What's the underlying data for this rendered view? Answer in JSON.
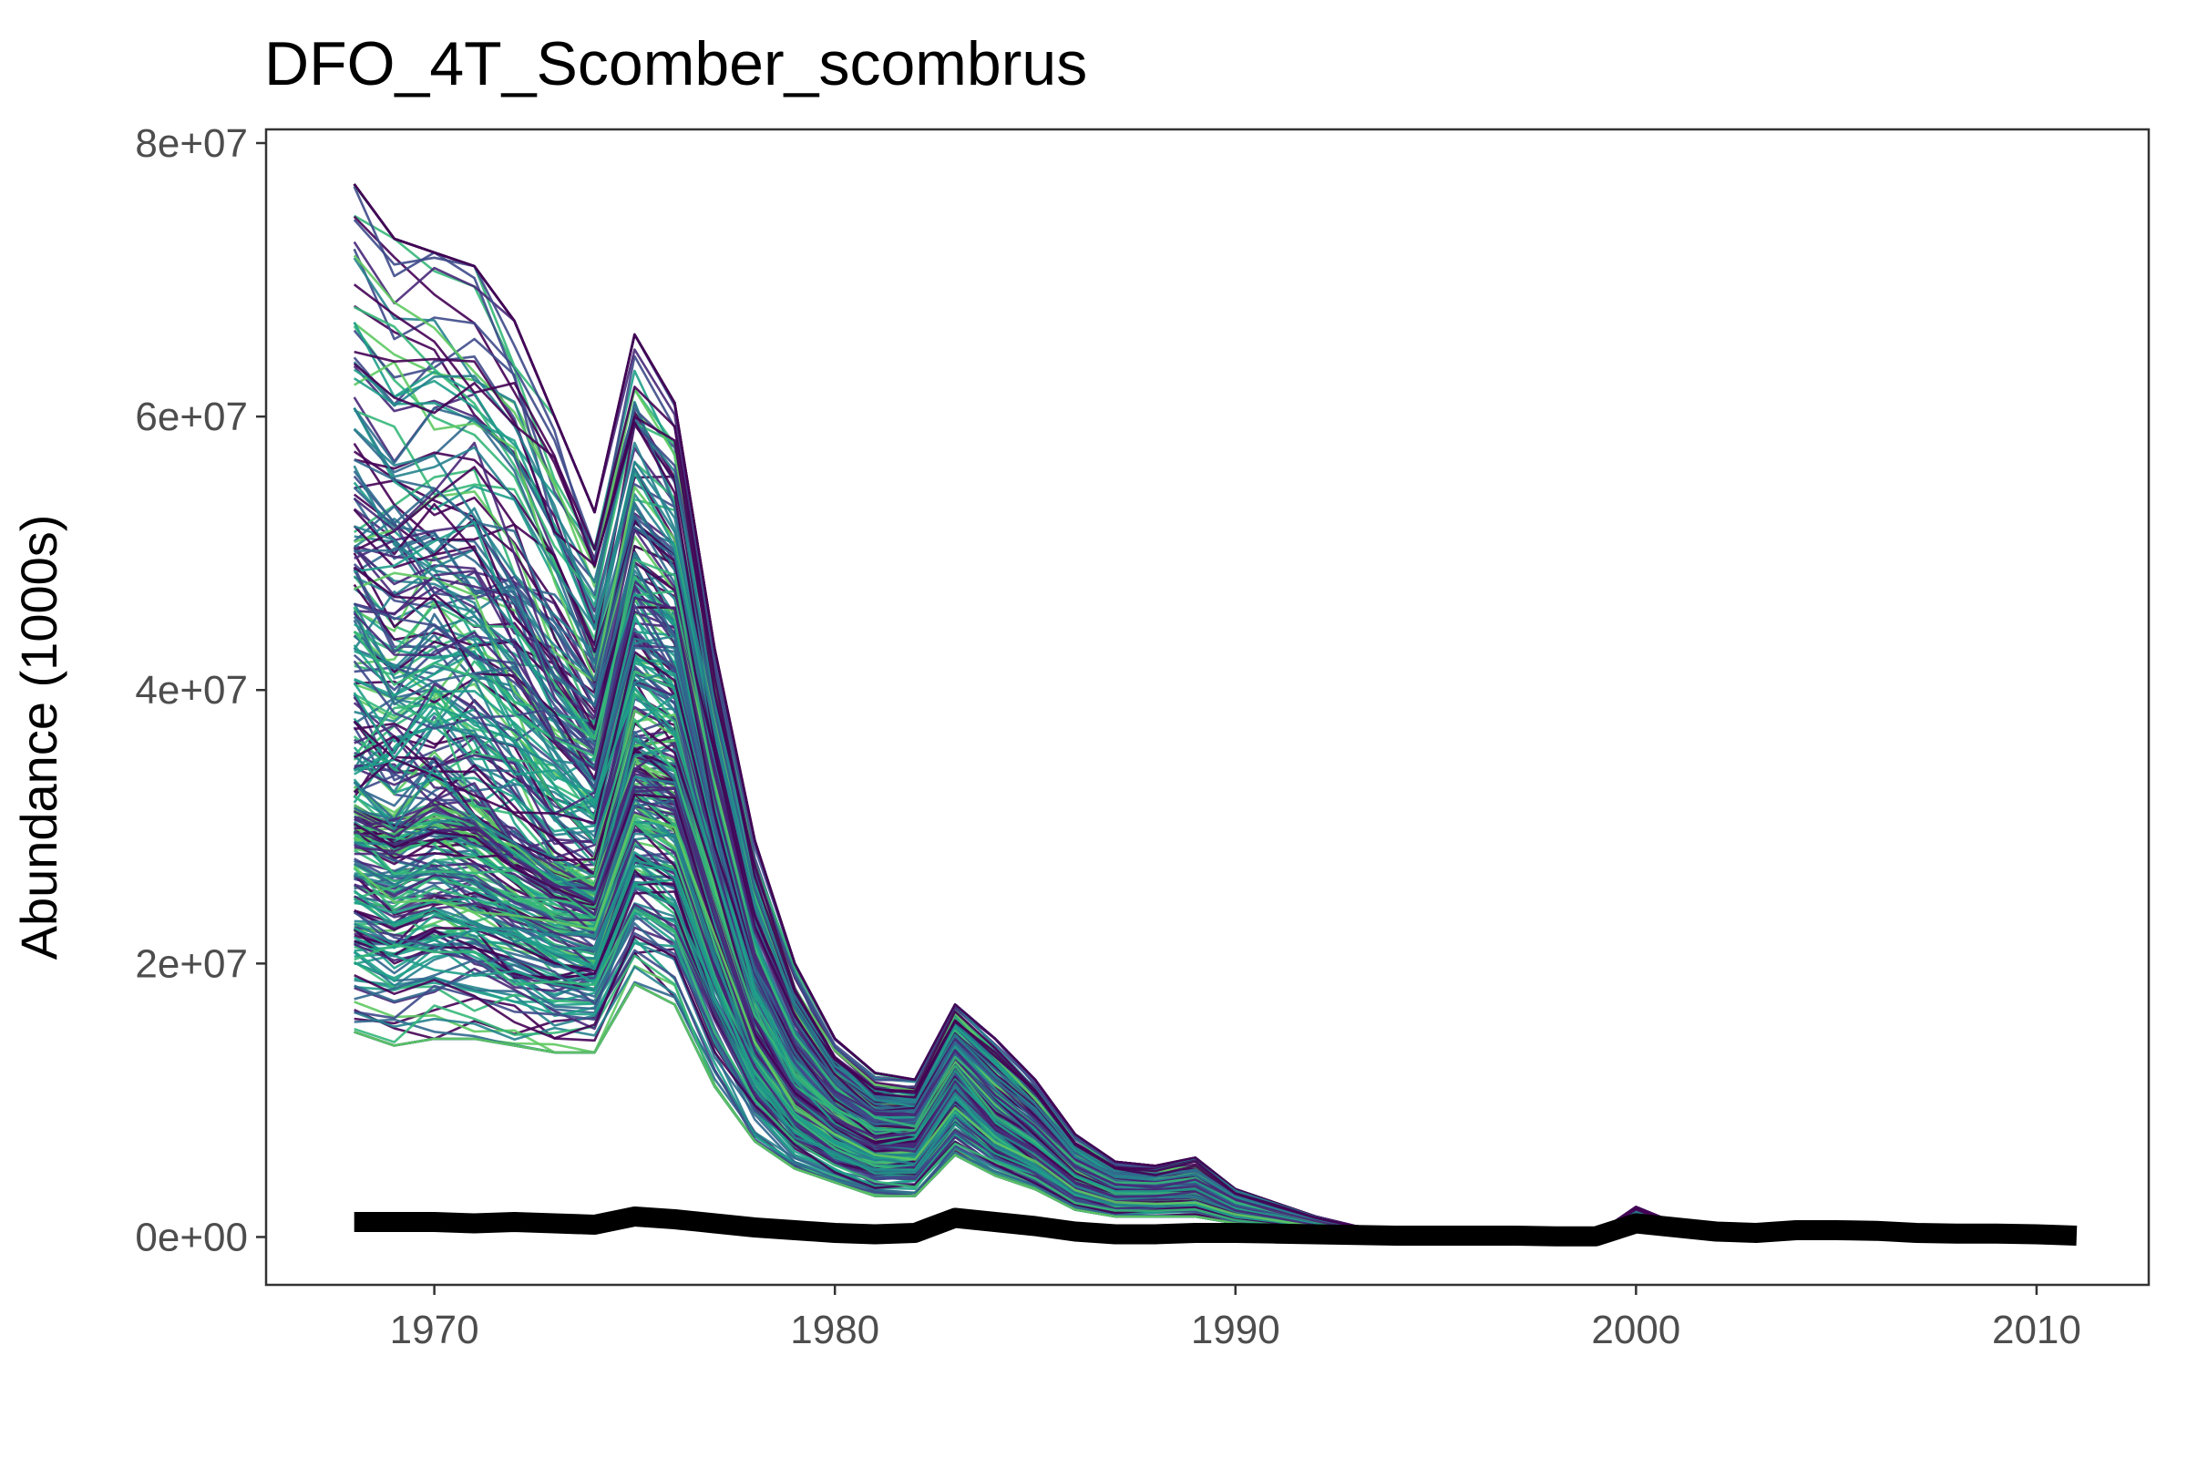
{
  "chart_data": {
    "type": "line",
    "title": "DFO_4T_Scomber_scombrus",
    "xlabel": "",
    "ylabel": "Abundance (1000s)",
    "xlim": [
      1965.8,
      2012.8
    ],
    "ylim": [
      -3500000,
      81000000
    ],
    "xticks": [
      1970,
      1980,
      1990,
      2000,
      2010
    ],
    "xtick_labels": [
      "1970",
      "1980",
      "1990",
      "2000",
      "2010"
    ],
    "yticks": [
      0,
      20000000,
      40000000,
      60000000,
      80000000
    ],
    "ytick_labels": [
      "0e+00",
      "2e+07",
      "4e+07",
      "6e+07",
      "8e+07"
    ],
    "grid": false,
    "legend": "none",
    "colors": {
      "ensemble_palette": [
        "#440154",
        "#482878",
        "#3e4a89",
        "#31688e",
        "#26828e",
        "#1f9e89",
        "#35b779",
        "#5ec962"
      ],
      "observed": "#000000"
    },
    "ensemble": {
      "count": 300,
      "x": [
        1968,
        1969,
        1970,
        1971,
        1972,
        1973,
        1974,
        1975,
        1976,
        1977,
        1978,
        1979,
        1980,
        1981,
        1982,
        1983,
        1984,
        1985,
        1986,
        1987,
        1988,
        1989,
        1990,
        1991,
        1992,
        1993,
        1994,
        1995,
        1996,
        1997,
        1998,
        1999,
        2000,
        2001,
        2002,
        2003
      ],
      "median": [
        32000000,
        31000000,
        32000000,
        31000000,
        29000000,
        27000000,
        26000000,
        36000000,
        35000000,
        25000000,
        16000000,
        11000000,
        8500000,
        7000000,
        7200000,
        12000000,
        8500000,
        6500000,
        4000000,
        3000000,
        3000000,
        3200000,
        2000000,
        1500000,
        900000,
        400000,
        300000,
        250000,
        200000,
        180000,
        150000,
        100000,
        1200000,
        500000,
        150000,
        0
      ],
      "min": [
        15000000,
        14000000,
        14500000,
        14500000,
        14000000,
        13500000,
        13500000,
        18500000,
        17000000,
        11000000,
        7000000,
        5000000,
        4000000,
        3000000,
        3000000,
        6000000,
        4500000,
        3500000,
        2000000,
        1500000,
        1500000,
        1500000,
        1000000,
        800000,
        500000,
        250000,
        200000,
        150000,
        120000,
        100000,
        80000,
        50000,
        700000,
        300000,
        80000,
        0
      ],
      "max": [
        77000000,
        73000000,
        72000000,
        71000000,
        67000000,
        60000000,
        53000000,
        66000000,
        61000000,
        43000000,
        29000000,
        20000000,
        14500000,
        12000000,
        11500000,
        17000000,
        14500000,
        11500000,
        7500000,
        5500000,
        5200000,
        5800000,
        3500000,
        2500000,
        1500000,
        800000,
        600000,
        500000,
        450000,
        400000,
        300000,
        200000,
        2200000,
        1000000,
        300000,
        0
      ]
    },
    "series": [
      {
        "x": [
          1968,
          1969,
          1970,
          1971,
          1972,
          1973,
          1974,
          1975,
          1976,
          1977,
          1978,
          1979,
          1980,
          1981,
          1982,
          1983,
          1984,
          1985,
          1986,
          1987,
          1988,
          1989,
          1990,
          1991,
          1992,
          1993,
          1994,
          1995,
          1996,
          1997,
          1998,
          1999,
          2000,
          2001,
          2002,
          2003,
          2004,
          2005,
          2006,
          2007,
          2008,
          2009,
          2010,
          2011
        ],
        "values": [
          1100000,
          1100000,
          1100000,
          1000000,
          1100000,
          1000000,
          900000,
          1500000,
          1300000,
          1000000,
          700000,
          500000,
          300000,
          200000,
          300000,
          1400000,
          1100000,
          800000,
          400000,
          200000,
          200000,
          300000,
          300000,
          250000,
          200000,
          150000,
          100000,
          100000,
          100000,
          100000,
          50000,
          50000,
          1000000,
          700000,
          400000,
          300000,
          500000,
          500000,
          450000,
          300000,
          250000,
          250000,
          200000,
          100000
        ]
      }
    ]
  }
}
